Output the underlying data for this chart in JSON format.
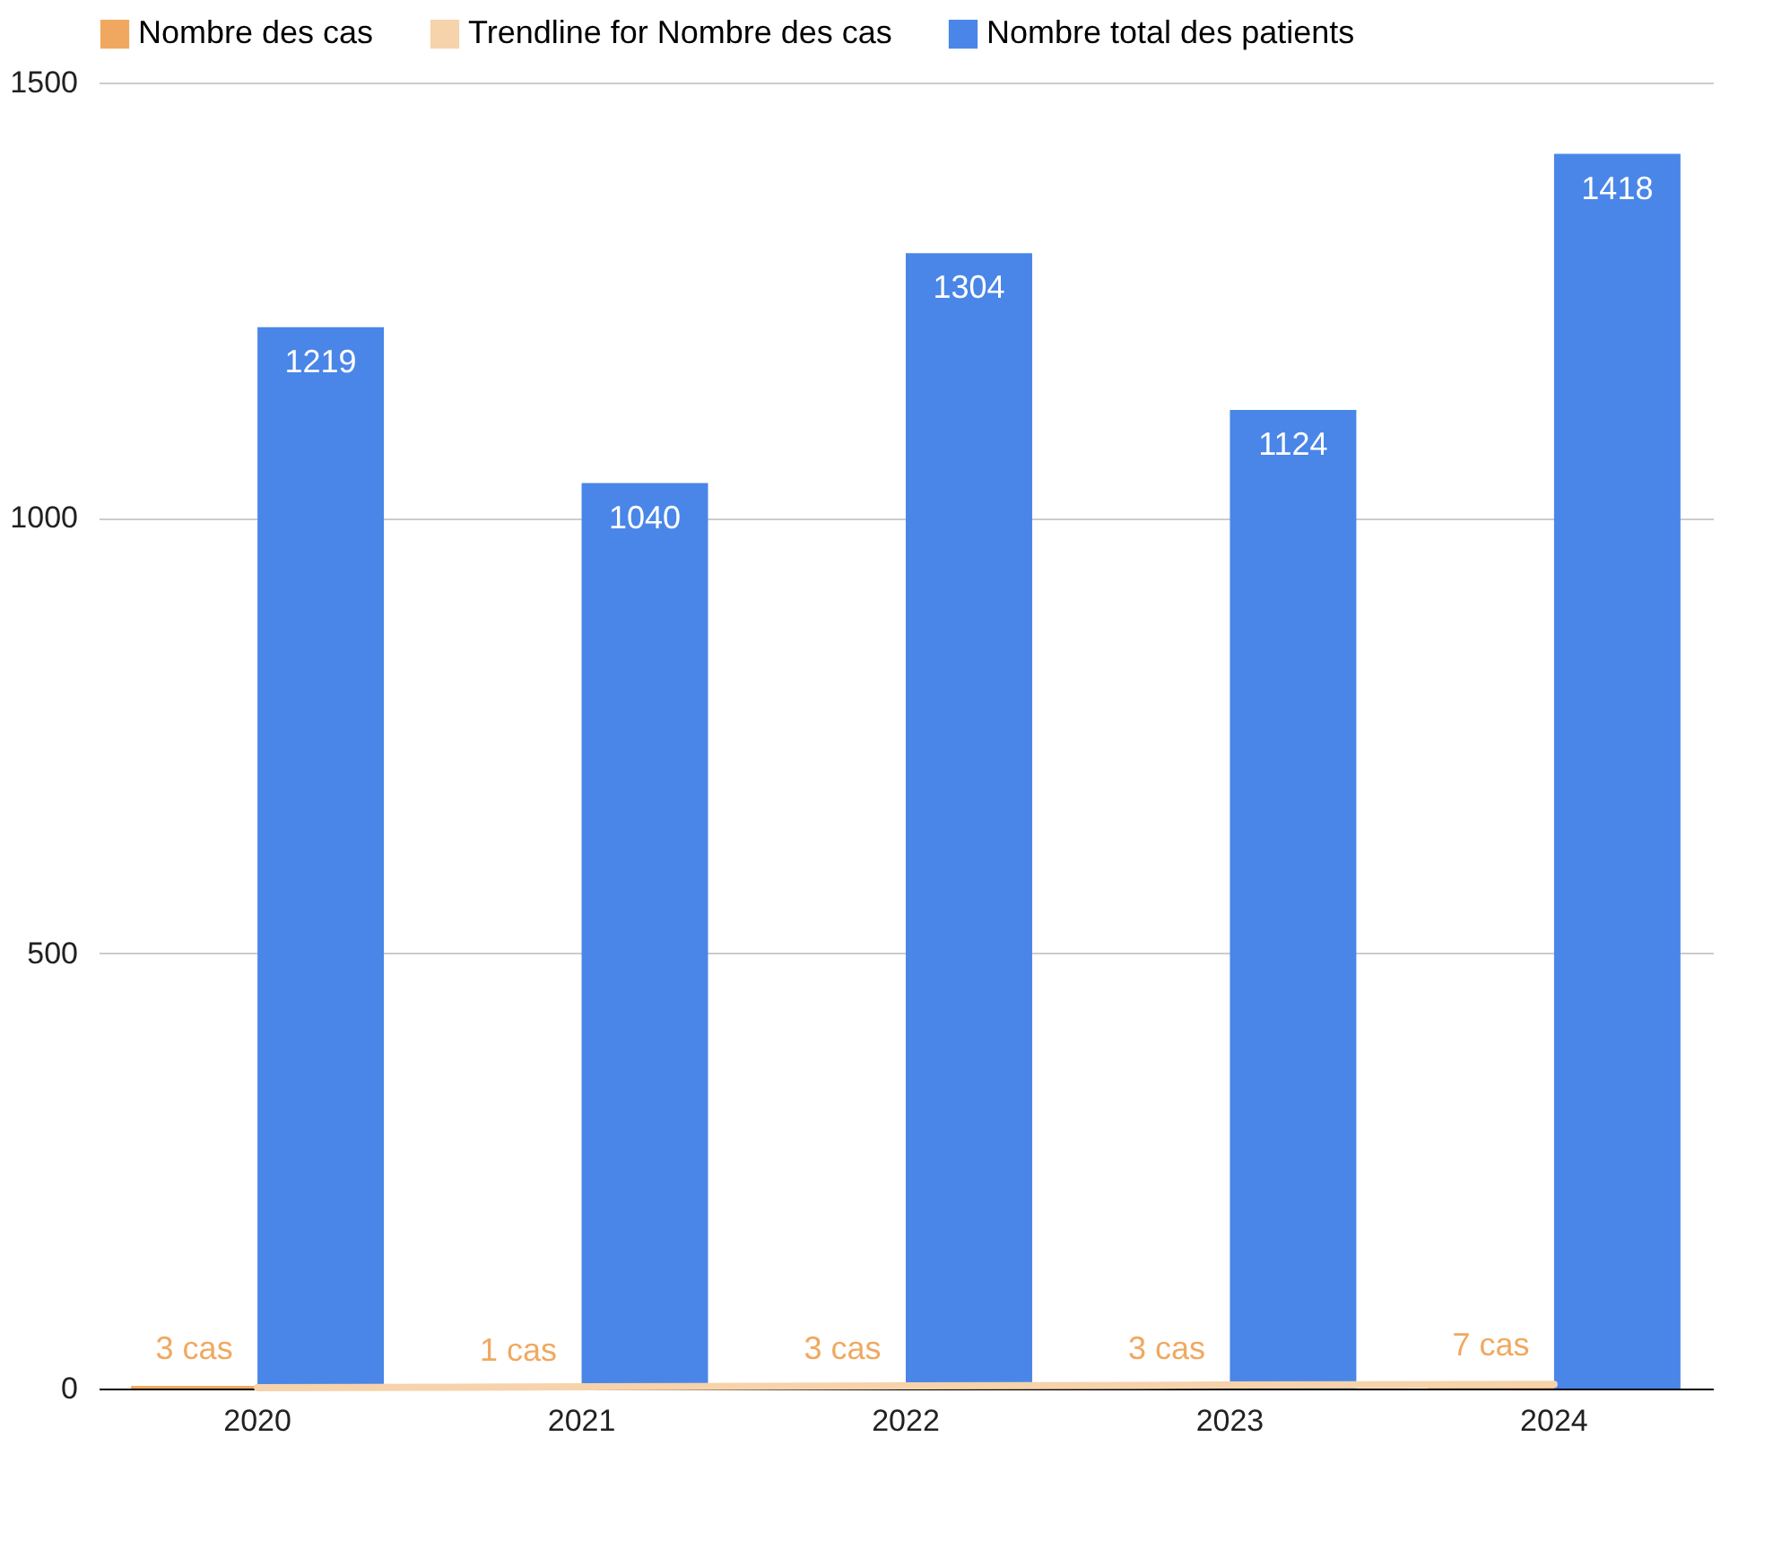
{
  "chart_data": {
    "type": "bar",
    "categories": [
      "2020",
      "2021",
      "2022",
      "2023",
      "2024"
    ],
    "series": [
      {
        "name": "Nombre des cas",
        "color": "#f0a860",
        "values": [
          3,
          1,
          3,
          3,
          7
        ],
        "value_labels": [
          "3 cas",
          "1 cas",
          "3 cas",
          "3 cas",
          "7 cas"
        ]
      },
      {
        "name": "Trendline for Nombre des cas",
        "type": "line",
        "color": "#f6d3ab",
        "values": [
          1,
          2,
          3,
          4,
          5
        ]
      },
      {
        "name": "Nombre total des patients",
        "color": "#4a86e8",
        "values": [
          1219,
          1040,
          1304,
          1124,
          1418
        ],
        "value_labels": [
          "1219",
          "1040",
          "1304",
          "1124",
          "1418"
        ]
      }
    ],
    "ylim": [
      0,
      1500
    ],
    "yticks": [
      0,
      500,
      1000,
      1500
    ],
    "grid": "y",
    "legend": "top"
  }
}
